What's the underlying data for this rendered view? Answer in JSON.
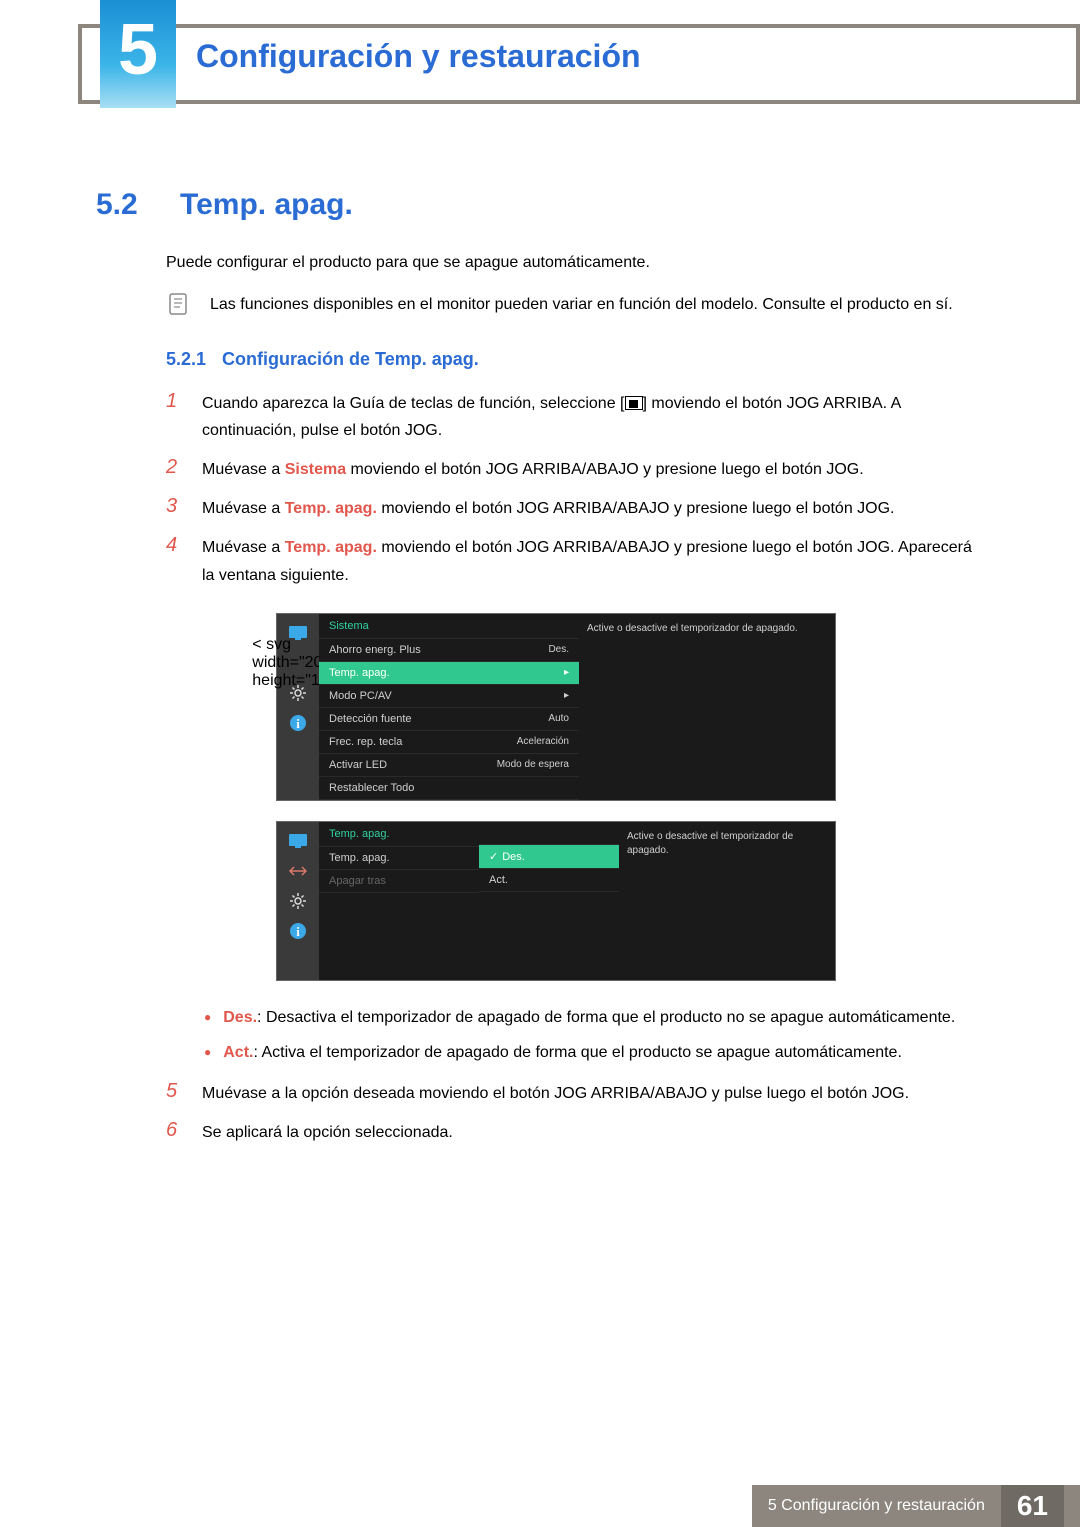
{
  "chapter": {
    "number": "5",
    "title": "Configuración y restauración"
  },
  "section": {
    "number": "5.2",
    "title": "Temp. apag."
  },
  "intro": "Puede configurar el producto para que se apague automáticamente.",
  "note": "Las funciones disponibles en el monitor pueden variar en función del modelo. Consulte el producto en sí.",
  "subsection": {
    "number": "5.2.1",
    "title": "Configuración de Temp. apag."
  },
  "steps": {
    "s1": {
      "num": "1",
      "pre": "Cuando aparezca la Guía de teclas de función, seleccione [",
      "post": "] moviendo el botón JOG ARRIBA. A continuación, pulse el botón JOG."
    },
    "s2": {
      "num": "2",
      "pre": "Muévase a ",
      "bold": "Sistema",
      "post": " moviendo el botón JOG ARRIBA/ABAJO y presione luego el botón JOG."
    },
    "s3": {
      "num": "3",
      "pre": "Muévase a ",
      "bold": "Temp. apag.",
      "post": " moviendo el botón JOG ARRIBA/ABAJO y presione luego el botón JOG."
    },
    "s4": {
      "num": "4",
      "pre": "Muévase a ",
      "bold": "Temp. apag.",
      "post": " moviendo el botón JOG ARRIBA/ABAJO y presione luego el botón JOG. Aparecerá la ventana siguiente."
    },
    "s5": {
      "num": "5",
      "text": "Muévase a la opción deseada moviendo el botón JOG ARRIBA/ABAJO y pulse luego el botón JOG."
    },
    "s6": {
      "num": "6",
      "text": "Se aplicará la opción seleccionada."
    }
  },
  "osd1": {
    "title": "Sistema",
    "rows": [
      {
        "label": "Ahorro energ. Plus",
        "value": "Des."
      },
      {
        "label": "Temp. apag.",
        "value": "▸",
        "selected": true
      },
      {
        "label": "Modo PC/AV",
        "value": "▸"
      },
      {
        "label": "Detección fuente",
        "value": "Auto"
      },
      {
        "label": "Frec. rep. tecla",
        "value": "Aceleración"
      },
      {
        "label": "Activar LED",
        "value": "Modo de espera"
      },
      {
        "label": "Restablecer Todo",
        "value": ""
      }
    ],
    "desc": "Active o desactive el temporizador de apagado.",
    "colors": {
      "bg": "#1a1a1a",
      "sidebar": "#3a3a3a",
      "text": "#cfcfcf",
      "title": "#30d0a0",
      "selected": "#30c88f",
      "border": "#2a2a2a"
    }
  },
  "osd2": {
    "title": "Temp. apag.",
    "rows": [
      {
        "label": "Temp. apag.",
        "value": ""
      },
      {
        "label": "Apagar tras",
        "value": "",
        "dim": true
      }
    ],
    "submenu": [
      {
        "label": "Des.",
        "selected": true,
        "check": true
      },
      {
        "label": "Act."
      }
    ],
    "desc": "Active o desactive el temporizador de apagado."
  },
  "bullets": {
    "b1": {
      "bold": "Des.",
      "text": ": Desactiva el temporizador de apagado de forma que el producto no se apague automáticamente."
    },
    "b2": {
      "bold": "Act.",
      "text": ": Activa el temporizador de apagado de forma que el producto se apague automáticamente."
    }
  },
  "footer": {
    "label": "5 Configuración y restauración",
    "page": "61"
  }
}
